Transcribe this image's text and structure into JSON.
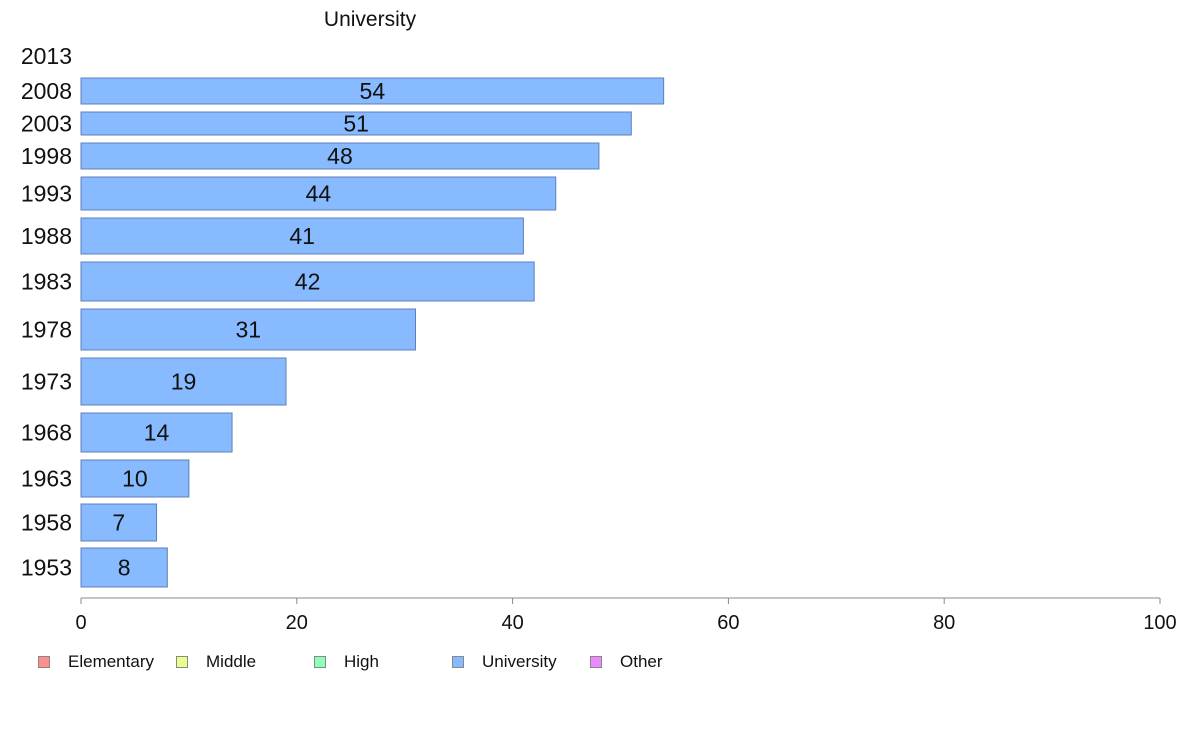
{
  "chart_data": {
    "type": "bar",
    "orientation": "horizontal",
    "title": "University",
    "categories": [
      "2013",
      "2008",
      "2003",
      "1998",
      "1993",
      "1988",
      "1983",
      "1978",
      "1973",
      "1968",
      "1963",
      "1958",
      "1953"
    ],
    "series": [
      {
        "name": "University",
        "values": [
          null,
          54,
          51,
          48,
          44,
          41,
          42,
          31,
          19,
          14,
          10,
          7,
          8
        ]
      }
    ],
    "data_labels": [
      "",
      "54",
      "51",
      "48",
      "44",
      "41",
      "42",
      "31",
      "19",
      "14",
      "10",
      "7",
      "8"
    ],
    "xlim": [
      0,
      100
    ],
    "xticks": [
      "0",
      "20",
      "40",
      "60",
      "80",
      "100"
    ],
    "grid": false,
    "bar_color": "#88baff",
    "bar_edge_color": "#5f7fb8",
    "legend_position": "bottom-left",
    "legend": [
      {
        "label": "Elementary",
        "color": "#ff8e8e"
      },
      {
        "label": "Middle",
        "color": "#e8ff8e"
      },
      {
        "label": "High",
        "color": "#8effb8"
      },
      {
        "label": "University",
        "color": "#88baff"
      },
      {
        "label": "Other",
        "color": "#ee88ff"
      }
    ]
  }
}
